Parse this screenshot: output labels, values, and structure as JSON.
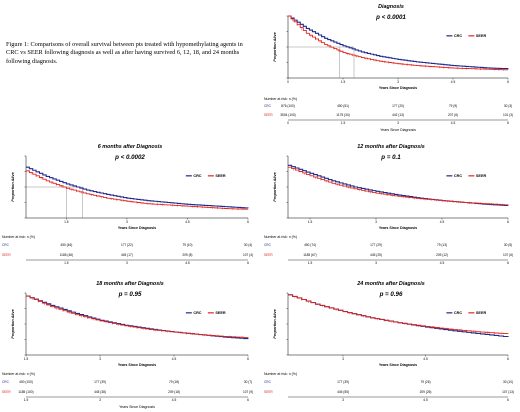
{
  "caption": "Figure 1: Comparisons of overall survival between pts treated with hypomethylating agents in CRC vs SEER following diagnosis as well as after having survived 6, 12, 18, and 24 months following diagnosis.",
  "colors": {
    "CRC": "#1f2a8c",
    "SEER": "#e0251c"
  },
  "chart_data": [
    {
      "type": "line",
      "title": "Diagnosis",
      "pvalue": "p < 0.0001",
      "xlabel": "Years Since Diagnosis",
      "ylabel": "Proportion Alive",
      "xlim": [
        0,
        6
      ],
      "ylim": [
        0,
        1
      ],
      "xticks": [
        "0",
        "1.5",
        "3",
        "4.5",
        "6"
      ],
      "median_guides": {
        "y": 0.5,
        "x": [
          1.4,
          1.8
        ]
      },
      "series": [
        {
          "name": "CRC",
          "x": [
            0,
            0.5,
            1,
            1.5,
            2,
            2.5,
            3,
            3.5,
            4,
            4.5,
            5,
            5.5,
            6
          ],
          "y": [
            1.0,
            0.8,
            0.64,
            0.52,
            0.42,
            0.35,
            0.3,
            0.26,
            0.23,
            0.2,
            0.18,
            0.16,
            0.15
          ]
        },
        {
          "name": "SEER",
          "x": [
            0,
            0.5,
            1,
            1.5,
            2,
            2.5,
            3,
            3.5,
            4,
            4.5,
            5,
            5.5,
            6
          ],
          "y": [
            1.0,
            0.72,
            0.54,
            0.41,
            0.33,
            0.27,
            0.23,
            0.2,
            0.18,
            0.16,
            0.15,
            0.14,
            0.13
          ]
        }
      ],
      "risk_table": {
        "title": "Number at risk: n (%)",
        "ticks": [
          "0",
          "1.5",
          "3",
          "4.5",
          "6"
        ],
        "xlabel": "Years Since Diagnosis",
        "rows": [
          {
            "name": "CRC",
            "values": [
              "876 (100)",
              "450 (51)",
              "177 (20)",
              "79 (9)",
              "30 (3)"
            ]
          },
          {
            "name": "SEER",
            "values": [
              "3504 (100)",
              "1175 (34)",
              "442 (13)",
              "207 (6)",
              "101 (3)"
            ]
          }
        ]
      }
    },
    {
      "type": "line",
      "title": "6 months after Diagnosis",
      "pvalue": "p < 0.0002",
      "xlabel": "Years Since Diagnosis",
      "ylabel": "Proportion Alive",
      "xlim": [
        0.5,
        6
      ],
      "ylim": [
        0,
        1
      ],
      "xticks": [
        "1.5",
        "3",
        "4.5",
        "6"
      ],
      "median_guides": {
        "y": 0.5,
        "x": [
          1.5,
          1.9
        ]
      },
      "series": [
        {
          "name": "CRC",
          "x": [
            0.5,
            1,
            1.5,
            2,
            2.5,
            3,
            3.5,
            4,
            4.5,
            5,
            5.5,
            6
          ],
          "y": [
            0.82,
            0.67,
            0.55,
            0.45,
            0.38,
            0.32,
            0.28,
            0.25,
            0.22,
            0.2,
            0.18,
            0.16
          ]
        },
        {
          "name": "SEER",
          "x": [
            0.5,
            1,
            1.5,
            2,
            2.5,
            3,
            3.5,
            4,
            4.5,
            5,
            5.5,
            6
          ],
          "y": [
            0.76,
            0.6,
            0.48,
            0.39,
            0.32,
            0.27,
            0.23,
            0.21,
            0.19,
            0.17,
            0.15,
            0.14
          ]
        }
      ],
      "risk_table": {
        "title": "Number at risk: n (%)",
        "ticks": [
          "1.5",
          "3",
          "4.5",
          "6"
        ],
        "xlabel": "",
        "rows": [
          {
            "name": "CRC",
            "values": [
              "450 (46)",
              "177 (22)",
              "79 (10)",
              "30 (4)"
            ]
          },
          {
            "name": "SEER",
            "values": [
              "1185 (46)",
              "445 (17)",
              "209 (8)",
              "107 (4)"
            ]
          }
        ]
      }
    },
    {
      "type": "line",
      "title": "12 months after Diagnosis",
      "pvalue": "p = 0.1",
      "xlabel": "Years Since Diagnosis",
      "ylabel": "Proportion Alive",
      "xlim": [
        1,
        6
      ],
      "ylim": [
        0,
        1
      ],
      "xticks": [
        "1.5",
        "3",
        "4.5",
        "6"
      ],
      "series": [
        {
          "name": "CRC",
          "x": [
            1,
            1.5,
            2,
            2.5,
            3,
            3.5,
            4,
            4.5,
            5,
            5.5,
            6
          ],
          "y": [
            0.85,
            0.72,
            0.6,
            0.5,
            0.43,
            0.37,
            0.32,
            0.28,
            0.25,
            0.22,
            0.2
          ]
        },
        {
          "name": "SEER",
          "x": [
            1,
            1.5,
            2,
            2.5,
            3,
            3.5,
            4,
            4.5,
            5,
            5.5,
            6
          ],
          "y": [
            0.82,
            0.68,
            0.56,
            0.47,
            0.4,
            0.35,
            0.31,
            0.28,
            0.25,
            0.23,
            0.21
          ]
        }
      ],
      "risk_table": {
        "title": "Number at risk: n (%)",
        "ticks": [
          "1.5",
          "3",
          "4.5",
          "6"
        ],
        "xlabel": "",
        "rows": [
          {
            "name": "CRC",
            "values": [
              "450 (74)",
              "177 (29)",
              "79 (13)",
              "30 (5)"
            ]
          },
          {
            "name": "SEER",
            "values": [
              "1185 (67)",
              "445 (25)",
              "209 (12)",
              "107 (6)"
            ]
          }
        ]
      }
    },
    {
      "type": "line",
      "title": "18 months after Diagnosis",
      "pvalue": "p = 0.95",
      "xlabel": "Years Since Diagnosis",
      "ylabel": "Proportion Alive",
      "xlim": [
        1.5,
        6
      ],
      "ylim": [
        0,
        1
      ],
      "xticks": [
        "1.5",
        "3",
        "4.5",
        "6"
      ],
      "series": [
        {
          "name": "CRC",
          "x": [
            1.5,
            2,
            2.5,
            3,
            3.5,
            4,
            4.5,
            5,
            5.5,
            6
          ],
          "y": [
            0.95,
            0.8,
            0.67,
            0.56,
            0.48,
            0.42,
            0.37,
            0.33,
            0.29,
            0.26
          ]
        },
        {
          "name": "SEER",
          "x": [
            1.5,
            2,
            2.5,
            3,
            3.5,
            4,
            4.5,
            5,
            5.5,
            6
          ],
          "y": [
            0.95,
            0.78,
            0.65,
            0.55,
            0.47,
            0.41,
            0.37,
            0.33,
            0.3,
            0.28
          ]
        }
      ],
      "risk_table": {
        "title": "Number at risk: n (%)",
        "ticks": [
          "1.5",
          "3",
          "4.5",
          "6"
        ],
        "xlabel": "Years Since Diagnosis",
        "rows": [
          {
            "name": "CRC",
            "values": [
              "450 (100)",
              "177 (39)",
              "79 (18)",
              "30 (7)"
            ]
          },
          {
            "name": "SEER",
            "values": [
              "1185 (100)",
              "445 (38)",
              "209 (18)",
              "107 (9)"
            ]
          }
        ]
      }
    },
    {
      "type": "line",
      "title": "24 months after Diagnosis",
      "pvalue": "p = 0.96",
      "xlabel": "Years Since Diagnosis",
      "ylabel": "Proportion Alive",
      "xlim": [
        2,
        6
      ],
      "ylim": [
        0,
        1
      ],
      "xticks": [
        "3",
        "4.5",
        "6"
      ],
      "series": [
        {
          "name": "CRC",
          "x": [
            2,
            2.5,
            3,
            3.5,
            4,
            4.5,
            5,
            5.5,
            6
          ],
          "y": [
            0.97,
            0.82,
            0.7,
            0.6,
            0.52,
            0.45,
            0.39,
            0.34,
            0.29
          ]
        },
        {
          "name": "SEER",
          "x": [
            2,
            2.5,
            3,
            3.5,
            4,
            4.5,
            5,
            5.5,
            6
          ],
          "y": [
            0.97,
            0.82,
            0.7,
            0.6,
            0.52,
            0.46,
            0.41,
            0.37,
            0.34
          ]
        }
      ],
      "risk_table": {
        "title": "Number at risk: n (%)",
        "ticks": [
          "3",
          "4.5",
          "6"
        ],
        "xlabel": "",
        "rows": [
          {
            "name": "CRC",
            "values": [
              "177 (39)",
              "79 (26)",
              "30 (10)"
            ]
          },
          {
            "name": "SEER",
            "values": [
              "445 (55)",
              "209 (26)",
              "107 (13)"
            ]
          }
        ]
      }
    }
  ]
}
